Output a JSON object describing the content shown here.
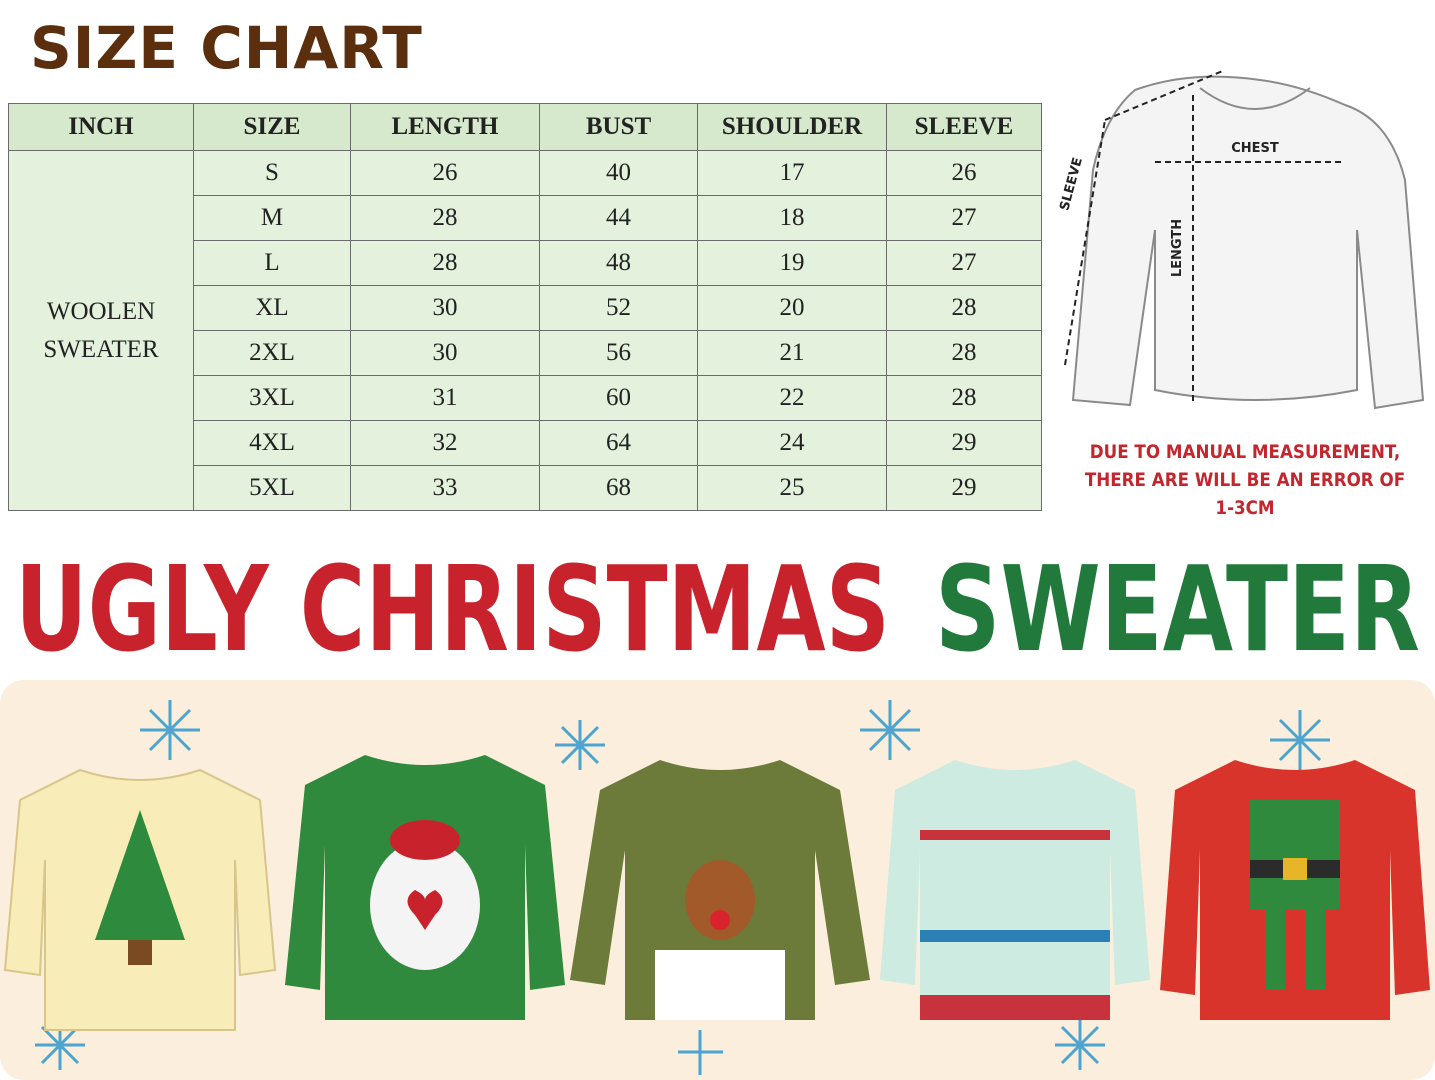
{
  "title": "SIZE CHART",
  "table": {
    "header": [
      "INCH",
      "SIZE",
      "LENGTH",
      "BUST",
      "SHOULDER",
      "SLEEVE"
    ],
    "group": "WOOLEN SWEATER",
    "rows": [
      [
        "S",
        26,
        40,
        17,
        26
      ],
      [
        "M",
        28,
        44,
        18,
        27
      ],
      [
        "L",
        28,
        48,
        19,
        27
      ],
      [
        "XL",
        30,
        52,
        20,
        28
      ],
      [
        "2XL",
        30,
        56,
        21,
        28
      ],
      [
        "3XL",
        31,
        60,
        22,
        28
      ],
      [
        "4XL",
        32,
        64,
        24,
        29
      ],
      [
        "5XL",
        33,
        68,
        25,
        29
      ]
    ]
  },
  "diagram": {
    "chest": "CHEST",
    "sleeve": "SLEEVE",
    "length": "LENGTH"
  },
  "note": [
    "DUE TO MANUAL MEASUREMENT,",
    "THERE ARE WILL BE AN ERROR OF 1-3CM"
  ],
  "banner": {
    "red": "UGLY CHRISTMAS",
    "green": "SWEATER"
  }
}
